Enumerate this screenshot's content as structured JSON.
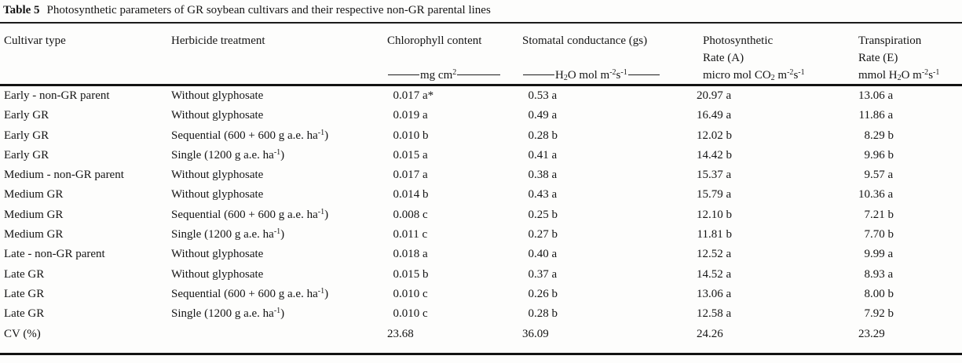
{
  "caption": {
    "label": "Table 5",
    "text": "Photosynthetic parameters of GR soybean cultivars and their respective non-GR parental lines"
  },
  "columns": [
    {
      "name": "cultivar-type",
      "header": "Cultivar type"
    },
    {
      "name": "herbicide-treatment",
      "header": "Herbicide treatment"
    },
    {
      "name": "chlorophyll-content",
      "header": "Chlorophyll content",
      "unit": "mg cm^{2}"
    },
    {
      "name": "stomatal-conductance",
      "header": "Stomatal conductance (gs)",
      "unit": "H_{2}O mol m^{-2}s^{-1}"
    },
    {
      "name": "photosynthetic-rate",
      "header": "Photosynthetic",
      "header_line2": "Rate (A)",
      "unit": "micro mol CO_{2} m^{-2}s^{-1}"
    },
    {
      "name": "transpiration-rate",
      "header": "Transpiration",
      "header_line2": "Rate (E)",
      "unit": "mmol H_{2}O m^{-2}s^{-1}"
    }
  ],
  "rows": [
    {
      "cells": [
        "Early - non-GR parent",
        "Without glyphosate",
        "0.017 a*",
        "0.53 a",
        "20.97 a",
        "13.06 a"
      ]
    },
    {
      "cells": [
        "Early GR",
        "Without glyphosate",
        "0.019 a",
        "0.49 a",
        "16.49 a",
        "11.86 a"
      ]
    },
    {
      "cells": [
        "Early GR",
        "Sequential (600 + 600 g a.e. ha^{-1})",
        "0.010 b",
        "0.28 b",
        "12.02 b",
        "8.29 b"
      ]
    },
    {
      "cells": [
        "Early GR",
        "Single (1200 g a.e. ha^{-1})",
        "0.015 a",
        "0.41 a",
        "14.42 b",
        "9.96 b"
      ]
    },
    {
      "cells": [
        "Medium - non-GR parent",
        "Without glyphosate",
        "0.017 a",
        "0.38 a",
        "15.37 a",
        "9.57 a"
      ]
    },
    {
      "cells": [
        "Medium GR",
        "Without glyphosate",
        "0.014 b",
        "0.43 a",
        "15.79 a",
        "10.36 a"
      ]
    },
    {
      "cells": [
        "Medium GR",
        "Sequential (600 + 600 g a.e. ha^{-1})",
        "0.008 c",
        "0.25 b",
        "12.10 b",
        "7.21 b"
      ]
    },
    {
      "cells": [
        "Medium GR",
        "Single (1200 g a.e. ha^{-1})",
        "0.011 c",
        "0.27 b",
        "11.81 b",
        "7.70 b"
      ]
    },
    {
      "cells": [
        "Late - non-GR parent",
        "Without glyphosate",
        "0.018 a",
        "0.40 a",
        "12.52 a",
        "9.99 a"
      ]
    },
    {
      "cells": [
        "Late GR",
        "Without glyphosate",
        "0.015 b",
        "0.37 a",
        "14.52 a",
        "8.93 a"
      ]
    },
    {
      "cells": [
        "Late GR",
        "Sequential (600 + 600 g a.e. ha^{-1})",
        "0.010 c",
        "0.26 b",
        "13.06 a",
        "8.00 b"
      ]
    },
    {
      "cells": [
        "Late GR",
        "Single (1200 g a.e. ha^{-1})",
        "0.010 c",
        "0.28 b",
        "12.58 a",
        "7.92 b"
      ]
    },
    {
      "cells": [
        "CV (%)",
        "",
        "23.68",
        "36.09",
        "24.26",
        "23.29"
      ]
    }
  ],
  "colors": {
    "background": "#fdfdfc",
    "text": "#151515",
    "rule": "#1b1b1b"
  }
}
